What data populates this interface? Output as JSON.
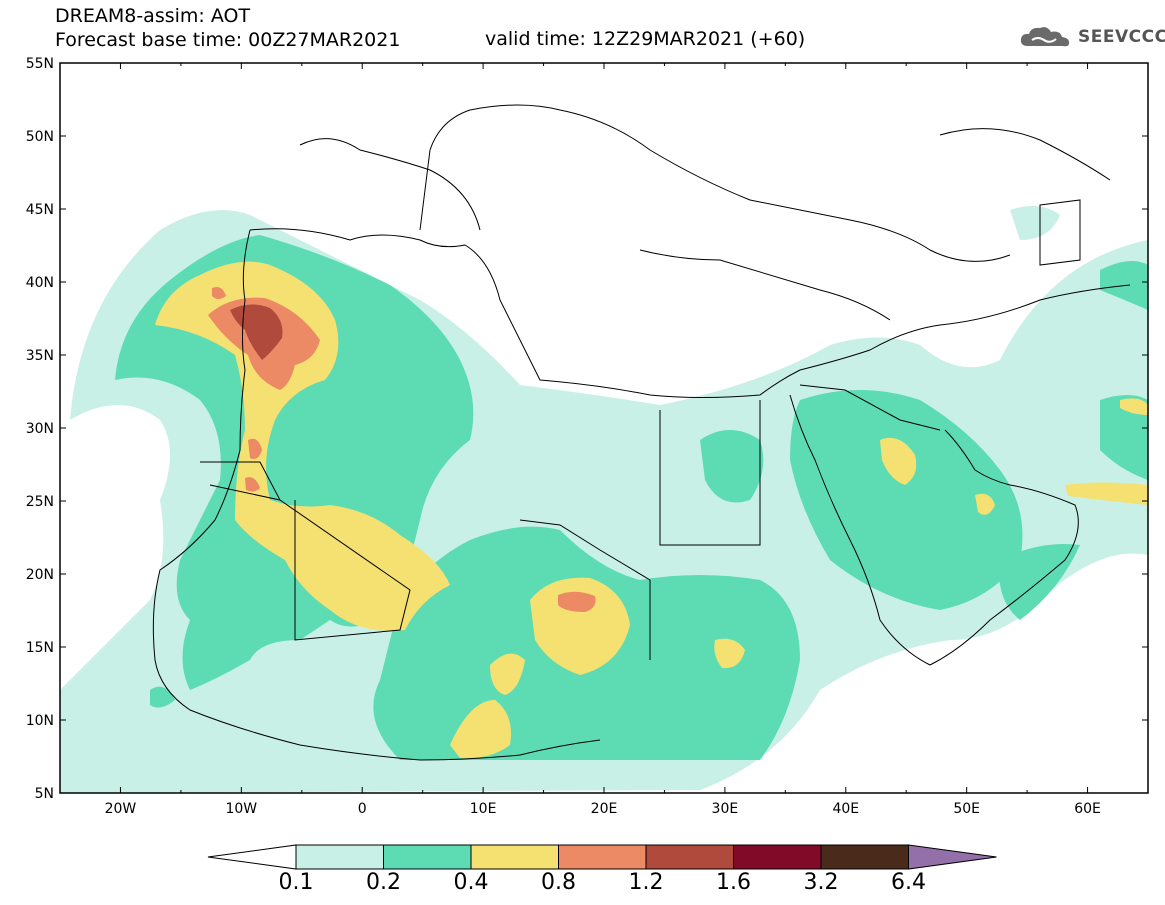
{
  "header": {
    "line1": "DREAM8-assim: AOT",
    "line2": "Forecast base time: 00Z27MAR2021",
    "valid": "valid time: 12Z29MAR2021 (+60)",
    "logo_text": "SEEVCCC"
  },
  "map": {
    "lon_range": [
      -25,
      65
    ],
    "lat_range": [
      5,
      55
    ],
    "lon_ticks": [
      "20W",
      "10W",
      "0",
      "10E",
      "20E",
      "30E",
      "40E",
      "50E",
      "60E"
    ],
    "lat_ticks": [
      "5N",
      "10N",
      "15N",
      "20N",
      "25N",
      "30N",
      "35N",
      "40N",
      "45N",
      "50N",
      "55N"
    ],
    "field": "AOT"
  },
  "colorbar": {
    "levels": [
      "0.1",
      "0.2",
      "0.4",
      "0.8",
      "1.2",
      "1.6",
      "3.2",
      "6.4"
    ],
    "colors": [
      "#ffffff",
      "#c8f0e6",
      "#5ddcb4",
      "#f5e172",
      "#eb8a64",
      "#b04a3c",
      "#800a28",
      "#4a2a1a",
      "#9470aa"
    ]
  }
}
